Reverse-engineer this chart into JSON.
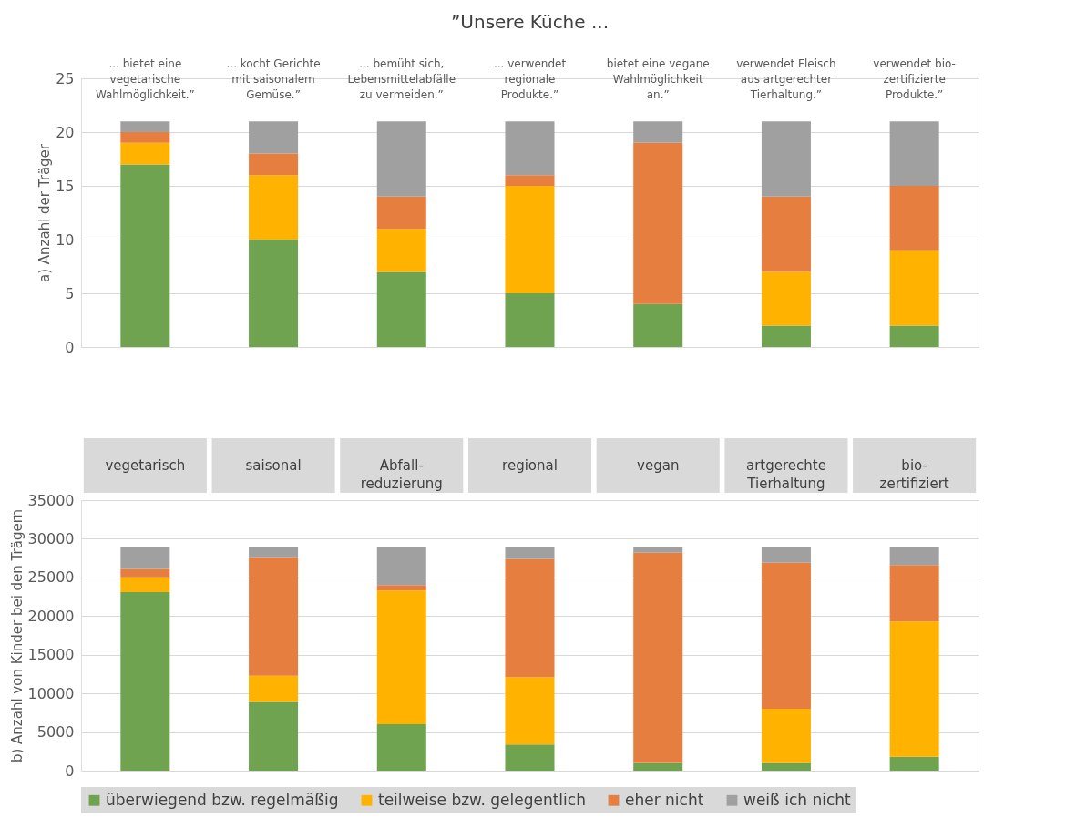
{
  "chart_data": [
    {
      "type": "bar",
      "stacked": true,
      "title": "”Unsere Küche ...",
      "ylabel": "a) Anzahl der Träger",
      "categories": [
        "... bietet eine\nvegetarische\nWahlmöglichkeit.”",
        "... kocht Gerichte\nmit saisonalem\nGemüse.”",
        "... bemüht sich,\nLebensmittelabfälle\nzu vermeiden.”",
        "... verwendet\nregionale\nProdukte.”",
        "bietet eine vegane\nWahlmöglichkeit\nan.”",
        "verwendet Fleisch\naus artgerechter\nTierhaltung.”",
        "verwendet bio-\nzertifizierte\nProdukte.”"
      ],
      "series": [
        {
          "color": "#70a34f",
          "values": [
            17,
            10,
            7,
            5,
            4,
            2,
            2
          ]
        },
        {
          "color": "#ffb200",
          "values": [
            2,
            6,
            4,
            10,
            0,
            5,
            7
          ]
        },
        {
          "color": "#e67e40",
          "values": [
            1,
            2,
            3,
            1,
            15,
            7,
            6
          ]
        },
        {
          "color": "#a0a0a0",
          "values": [
            1,
            3,
            7,
            5,
            2,
            7,
            6
          ]
        }
      ],
      "ylim": [
        0,
        25
      ],
      "yticks": [
        0,
        5,
        10,
        15,
        20,
        25
      ],
      "grid": "y",
      "legend": false
    },
    {
      "type": "bar",
      "stacked": true,
      "ylabel": "b) Anzahl von Kinder bei den Trägern",
      "categories": [
        "vegetarisch",
        "saisonal",
        "Abfall-\nreduzierung",
        "regional",
        "vegan",
        "artgerechte\nTierhaltung",
        "bio-\nzertifiziert"
      ],
      "series": [
        {
          "name": "überwiegend bzw. regelmäßig",
          "color": "#70a34f",
          "values": [
            23100,
            8900,
            6000,
            3400,
            1000,
            1000,
            1800
          ]
        },
        {
          "name": "teilweise bzw. gelegentlich",
          "color": "#ffb200",
          "values": [
            1900,
            3400,
            17300,
            8700,
            0,
            7000,
            17500
          ]
        },
        {
          "name": "eher nicht",
          "color": "#e67e40",
          "values": [
            1100,
            15300,
            700,
            15300,
            27200,
            18900,
            7300
          ]
        },
        {
          "name": "weiß ich nicht",
          "color": "#a0a0a0",
          "values": [
            2900,
            1400,
            5000,
            1600,
            800,
            2100,
            2400
          ]
        }
      ],
      "ylim": [
        0,
        35000
      ],
      "yticks": [
        0,
        5000,
        10000,
        15000,
        20000,
        25000,
        30000,
        35000
      ],
      "grid": "y",
      "legend": "bottom"
    }
  ]
}
